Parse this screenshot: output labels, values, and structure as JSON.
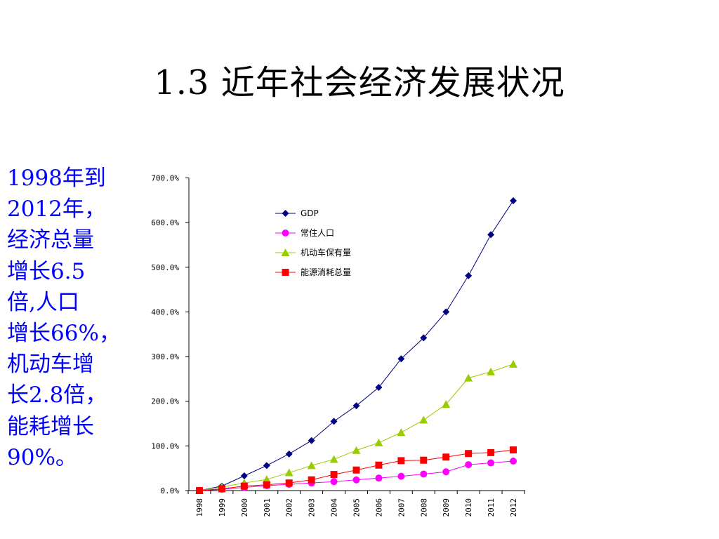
{
  "slide": {
    "title": "1.3  近年社会经济发展状况",
    "side_text": "1998年到\n2012年，\n经济总量\n增长6.5\n倍,人口\n增长66%，\n机动车增\n长2.8倍，\n能耗增长\n90%。",
    "side_text_color": "#0000ff"
  },
  "chart_data": {
    "type": "line",
    "categories": [
      "1998",
      "1999",
      "2000",
      "2001",
      "2002",
      "2003",
      "2004",
      "2005",
      "2006",
      "2007",
      "2008",
      "2009",
      "2010",
      "2011",
      "2012"
    ],
    "ylim": [
      0,
      700
    ],
    "yticks": [
      "0.0%",
      "100.0%",
      "200.0%",
      "300.0%",
      "400.0%",
      "500.0%",
      "600.0%",
      "700.0%"
    ],
    "ytick_values": [
      0,
      100,
      200,
      300,
      400,
      500,
      600,
      700
    ],
    "legend_position": "top-center",
    "grid": false,
    "series": [
      {
        "name": "GDP",
        "color": "#000080",
        "marker": "diamond",
        "values": [
          0,
          10,
          33,
          56,
          82,
          112,
          155,
          190,
          231,
          295,
          342,
          400,
          481,
          573,
          649
        ]
      },
      {
        "name": "常住人口",
        "color": "#ff00ff",
        "marker": "circle",
        "values": [
          0,
          3,
          7,
          11,
          14,
          17,
          20,
          24,
          28,
          32,
          37,
          42,
          58,
          62,
          66
        ]
      },
      {
        "name": "机动车保有量",
        "color": "#99cc00",
        "marker": "triangle",
        "values": [
          0,
          8,
          17,
          25,
          40,
          56,
          70,
          90,
          107,
          130,
          158,
          193,
          252,
          266,
          283
        ]
      },
      {
        "name": "能源消耗总量",
        "color": "#ff0000",
        "marker": "square",
        "values": [
          0,
          4,
          10,
          13,
          17,
          24,
          36,
          46,
          57,
          67,
          68,
          75,
          83,
          85,
          91
        ]
      }
    ]
  }
}
